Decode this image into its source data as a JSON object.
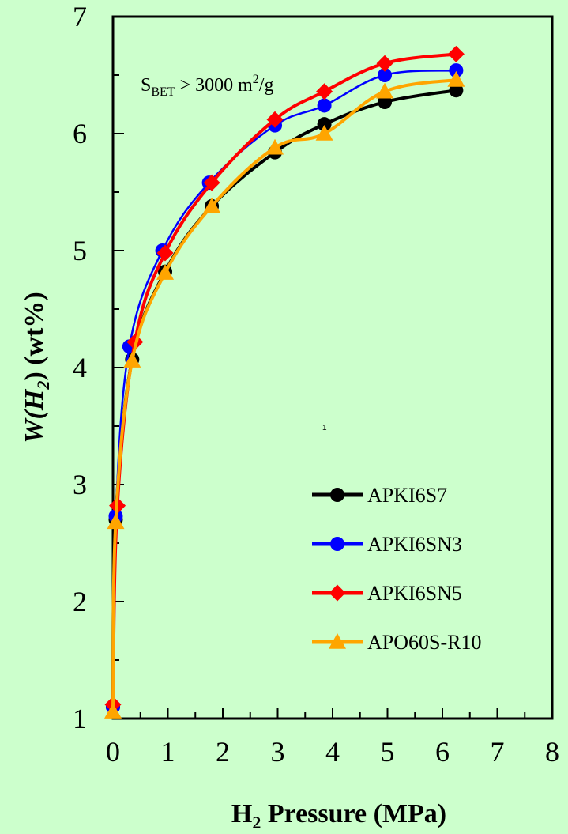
{
  "chart_data": {
    "type": "line",
    "xlabel_main": "H",
    "xlabel_sub": "2",
    "xlabel_rest": " Pressure (MPa)",
    "ylabel_main": "W(H",
    "ylabel_sub": "2",
    "ylabel_rest": ")  (wt%)",
    "xlim": [
      0,
      8
    ],
    "ylim": [
      1,
      7
    ],
    "xticks": [
      "0",
      "1",
      "2",
      "3",
      "4",
      "5",
      "6",
      "7",
      "8"
    ],
    "yticks": [
      "1",
      "2",
      "3",
      "4",
      "5",
      "6",
      "7"
    ],
    "annotation": {
      "prefix": "S",
      "subscript": "BET",
      "middle": " > 3000 m",
      "superscript": "2",
      "suffix": "/g"
    },
    "stray_mark": "1",
    "legend_position": "bottom-right",
    "series": [
      {
        "name": "APKI6S7",
        "color": "#000000",
        "marker": "circle",
        "points": [
          [
            0.0,
            1.1
          ],
          [
            0.05,
            2.7
          ],
          [
            0.35,
            4.07
          ],
          [
            0.95,
            4.82
          ],
          [
            1.8,
            5.38
          ],
          [
            2.95,
            5.84
          ],
          [
            3.85,
            6.08
          ],
          [
            4.95,
            6.27
          ],
          [
            6.25,
            6.37
          ]
        ]
      },
      {
        "name": "APKI6SN3",
        "color": "#0000ff",
        "marker": "circle",
        "points": [
          [
            0.0,
            1.1
          ],
          [
            0.05,
            2.73
          ],
          [
            0.3,
            4.18
          ],
          [
            0.9,
            5.0
          ],
          [
            1.75,
            5.58
          ],
          [
            2.95,
            6.07
          ],
          [
            3.85,
            6.24
          ],
          [
            4.95,
            6.5
          ],
          [
            6.25,
            6.54
          ]
        ]
      },
      {
        "name": "APKI6SN5",
        "color": "#ff0000",
        "marker": "diamond",
        "points": [
          [
            0.0,
            1.12
          ],
          [
            0.08,
            2.82
          ],
          [
            0.4,
            4.22
          ],
          [
            0.95,
            4.98
          ],
          [
            1.8,
            5.58
          ],
          [
            2.95,
            6.12
          ],
          [
            3.85,
            6.36
          ],
          [
            4.95,
            6.6
          ],
          [
            6.25,
            6.68
          ]
        ]
      },
      {
        "name": "APO60S-R10",
        "color": "#ffa500",
        "marker": "triangle",
        "points": [
          [
            0.0,
            1.06
          ],
          [
            0.05,
            2.68
          ],
          [
            0.35,
            4.06
          ],
          [
            0.95,
            4.81
          ],
          [
            1.8,
            5.38
          ],
          [
            2.95,
            5.88
          ],
          [
            3.85,
            6.0
          ],
          [
            4.95,
            6.36
          ],
          [
            6.25,
            6.46
          ]
        ]
      }
    ]
  }
}
